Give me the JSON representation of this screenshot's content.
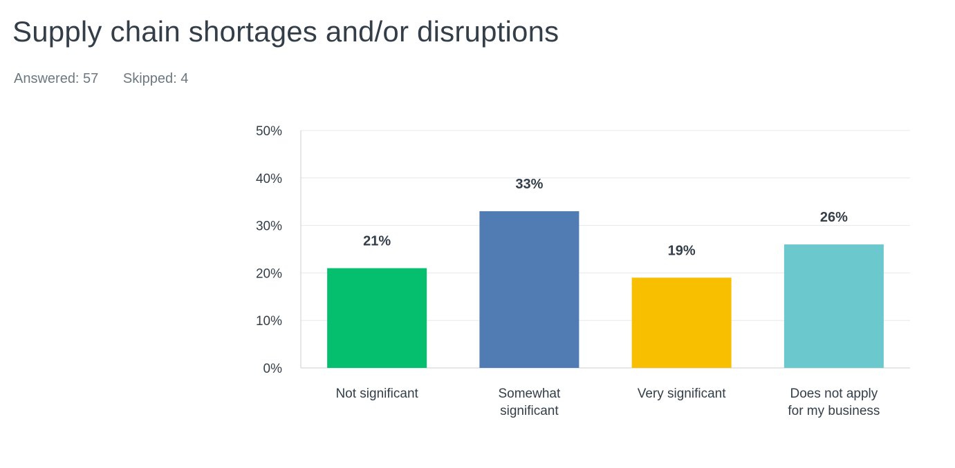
{
  "header": {
    "title": "Supply chain shortages and/or disruptions",
    "answered_label": "Answered: 57",
    "skipped_label": "Skipped: 4"
  },
  "chart_data": {
    "type": "bar",
    "categories": [
      [
        "Not significant"
      ],
      [
        "Somewhat",
        "significant"
      ],
      [
        "Very significant"
      ],
      [
        "Does not apply",
        "for my business"
      ]
    ],
    "values": [
      21,
      33,
      19,
      26
    ],
    "data_labels": [
      "21%",
      "33%",
      "19%",
      "26%"
    ],
    "colors": [
      "#05bf6f",
      "#507cb3",
      "#f8be00",
      "#6bc8cc"
    ],
    "yticks": [
      "0%",
      "10%",
      "20%",
      "30%",
      "40%",
      "50%"
    ],
    "ylim": [
      0,
      50
    ],
    "grid": true,
    "legend": "none"
  }
}
